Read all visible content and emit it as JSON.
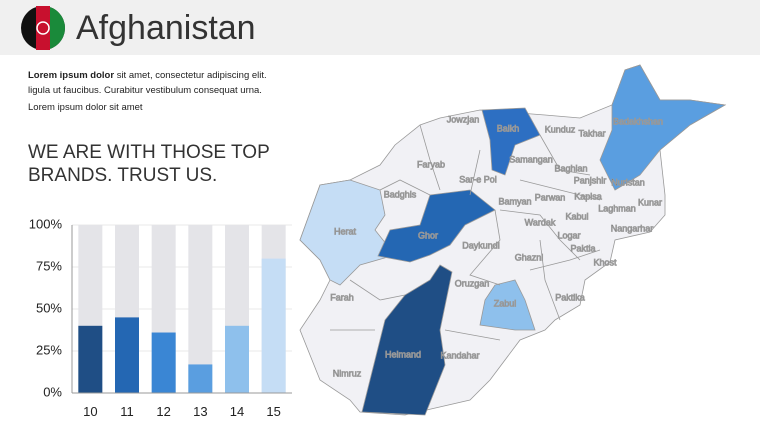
{
  "header": {
    "title": "Afghanistan"
  },
  "intro": {
    "bold": "Lorem ipsum dolor",
    "lines": [
      "sit amet, consectetur  adipiscing elit.",
      "ligula ut faucibus.  Curabitur vestibulum consequat urna.",
      "Lorem ipsum dolor sit amet"
    ]
  },
  "heading": [
    "WE ARE WITH THOSE TOP",
    "BRANDS. TRUST US."
  ],
  "map": {
    "labels": [
      "Jowzjan",
      "Balkh",
      "Kunduz",
      "Takhar",
      "Badakhshan",
      "Samangan",
      "Faryab",
      "Sar-e Pol",
      "Baghlan",
      "Panjshir",
      "Nuristan",
      "Badghis",
      "Bamyan",
      "Parwan",
      "Kapisa",
      "Kunar",
      "Herat",
      "Ghor",
      "Wardak",
      "Kabul",
      "Laghman",
      "Nangarhar",
      "Daykundi",
      "Logar",
      "Paktia",
      "Khost",
      "Ghazni",
      "Farah",
      "Oruzgan",
      "Zabul",
      "Paktika",
      "Helmand",
      "Kandahar",
      "Nimruz"
    ]
  },
  "chart_data": {
    "type": "bar",
    "categories": [
      "10",
      "11",
      "12",
      "13",
      "14",
      "15"
    ],
    "values": [
      40,
      45,
      36,
      17,
      40,
      80
    ],
    "colors": [
      "#1f4e85",
      "#2467b3",
      "#3a86d4",
      "#5a9ee0",
      "#8ec0ec",
      "#c5ddf5"
    ],
    "ylim": [
      0,
      100
    ],
    "yticks": [
      {
        "value": 0,
        "label": "0%"
      },
      {
        "value": 25,
        "label": "25%"
      },
      {
        "value": 50,
        "label": "50%"
      },
      {
        "value": 75,
        "label": "75%"
      },
      {
        "value": 100,
        "label": "100%"
      }
    ]
  }
}
